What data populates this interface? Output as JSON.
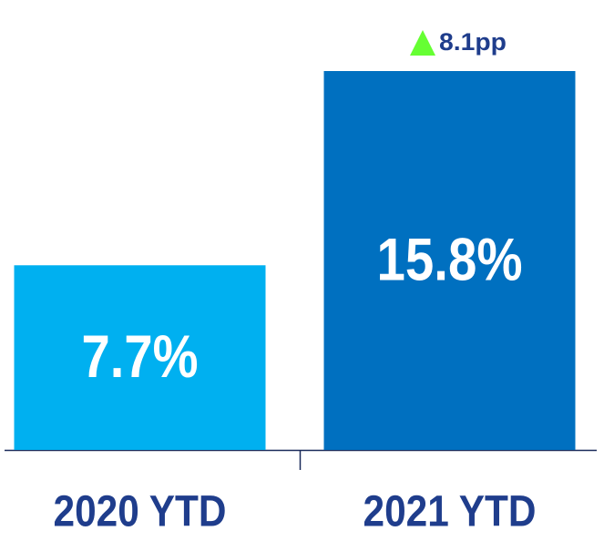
{
  "chart_data": {
    "type": "bar",
    "categories": [
      "2020 YTD",
      "2021 YTD"
    ],
    "values": [
      7.7,
      15.8
    ],
    "value_labels": [
      "7.7%",
      "15.8%"
    ],
    "colors": [
      "#00b0f0",
      "#0070c0"
    ],
    "annotation": "8.1pp"
  }
}
